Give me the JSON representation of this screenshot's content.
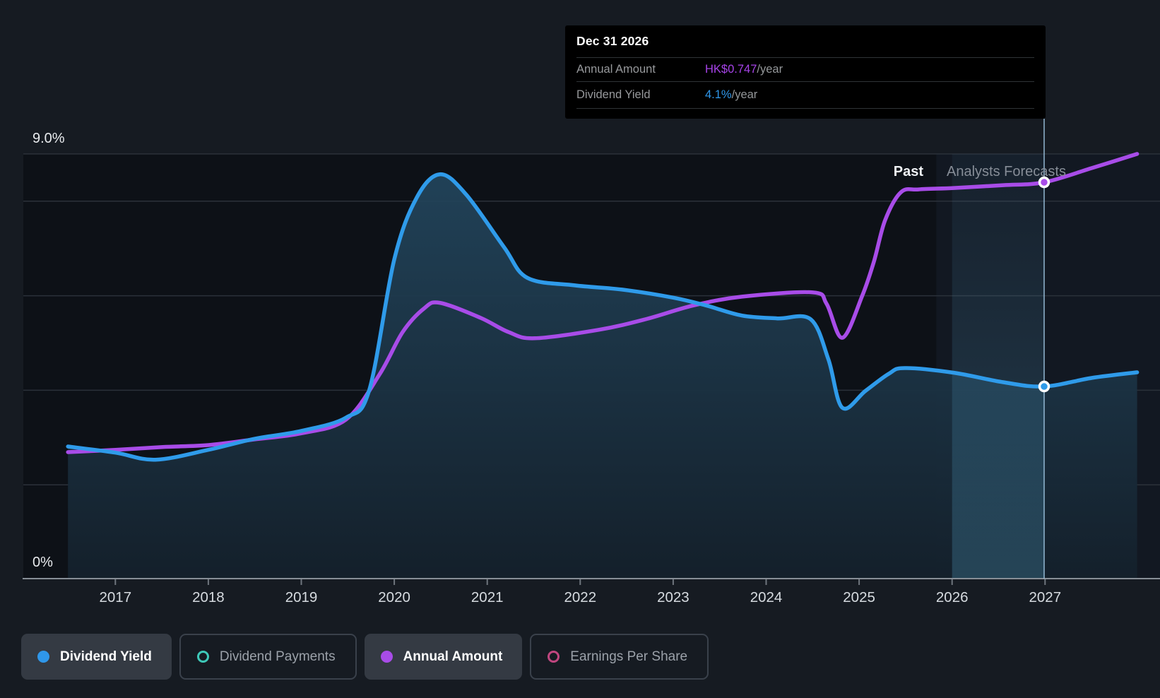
{
  "tooltip": {
    "date": "Dec 31 2026",
    "rows": [
      {
        "label": "Annual Amount",
        "value": "HK$0.747",
        "suffix": "/year",
        "value_color": "#a643e8"
      },
      {
        "label": "Dividend Yield",
        "value": "4.1%",
        "suffix": "/year",
        "value_color": "#2f97ea"
      }
    ]
  },
  "region_labels": {
    "past": "Past",
    "forecast": "Analysts Forecasts"
  },
  "axis": {
    "y_top_label": "9.0%",
    "y_bottom_label": "0%",
    "x_tick_years": [
      2017,
      2018,
      2019,
      2020,
      2021,
      2022,
      2023,
      2024,
      2025,
      2026,
      2027
    ]
  },
  "legend": [
    {
      "label": "Dividend Yield",
      "active": true,
      "color": "#2f97ea",
      "marker": "filled"
    },
    {
      "label": "Dividend Payments",
      "active": false,
      "color": "#3ec8b8",
      "marker": "ring"
    },
    {
      "label": "Annual Amount",
      "active": true,
      "color": "#a84ce8",
      "marker": "filled"
    },
    {
      "label": "Earnings Per Share",
      "active": false,
      "color": "#c0467f",
      "marker": "ring"
    }
  ],
  "colors": {
    "page_bg": "#161b22",
    "plot_bg_past": "#0d1117",
    "plot_bg_forecast": "#121822",
    "gridline": "#2b313a",
    "axis_line": "#878e96",
    "tick": "#6f767e",
    "year_label": "#d6dbe0",
    "pct_label": "#e8ebee",
    "past_label": "#f0f3f6",
    "forecast_label": "#868d97",
    "blue_line": "#2f9bea",
    "purple_line": "#a84ce8",
    "hover_line": "#9cc3df"
  },
  "chart_data": {
    "type": "area",
    "title": "Dividend Yield history and forecast",
    "x_unit": "year",
    "y_unit": "percent (left scale 0%-9.0%)",
    "xlim": [
      2016.45,
      2028.25
    ],
    "ylim": [
      0,
      9.6
    ],
    "x_ticks": [
      2017,
      2018,
      2019,
      2020,
      2021,
      2022,
      2023,
      2024,
      2025,
      2026,
      2027
    ],
    "gridlines_pct": [
      9,
      8,
      6,
      4,
      2
    ],
    "grid": true,
    "legend_position": "bottom",
    "past_until": 2025.83,
    "hover": {
      "x": 2026.99,
      "band_start": 2026.0,
      "date": "Dec 31 2026",
      "dividend_yield_pct": 4.1,
      "annual_amount": "HK$0.747"
    },
    "series": [
      {
        "name": "Annual Amount",
        "color": "#a84ce8",
        "fill": false,
        "unit": "plotted on % axis; HK$0.747/year at cursor equals 8.40 axis units",
        "points": [
          [
            2016.49,
            2.69
          ],
          [
            2017.0,
            2.74
          ],
          [
            2017.51,
            2.8
          ],
          [
            2018.0,
            2.84
          ],
          [
            2018.49,
            2.96
          ],
          [
            2019.0,
            3.09
          ],
          [
            2019.48,
            3.38
          ],
          [
            2019.84,
            4.33
          ],
          [
            2020.09,
            5.23
          ],
          [
            2020.32,
            5.73
          ],
          [
            2020.49,
            5.85
          ],
          [
            2020.93,
            5.53
          ],
          [
            2021.23,
            5.23
          ],
          [
            2021.51,
            5.1
          ],
          [
            2022.2,
            5.28
          ],
          [
            2022.7,
            5.5
          ],
          [
            2023.21,
            5.79
          ],
          [
            2023.74,
            5.98
          ],
          [
            2024.5,
            6.07
          ],
          [
            2024.65,
            5.83
          ],
          [
            2024.82,
            5.11
          ],
          [
            2025.03,
            5.98
          ],
          [
            2025.16,
            6.73
          ],
          [
            2025.28,
            7.6
          ],
          [
            2025.45,
            8.19
          ],
          [
            2025.64,
            8.25
          ],
          [
            2026.02,
            8.28
          ],
          [
            2026.55,
            8.34
          ],
          [
            2026.99,
            8.4
          ],
          [
            2027.5,
            8.7
          ],
          [
            2027.99,
            9.0
          ]
        ]
      },
      {
        "name": "Dividend Yield",
        "color": "#2f9bea",
        "fill": true,
        "unit": "percent",
        "points": [
          [
            2016.49,
            2.81
          ],
          [
            2017.0,
            2.68
          ],
          [
            2017.43,
            2.53
          ],
          [
            2018.0,
            2.74
          ],
          [
            2018.49,
            2.97
          ],
          [
            2019.0,
            3.14
          ],
          [
            2019.48,
            3.42
          ],
          [
            2019.73,
            4.0
          ],
          [
            2020.0,
            6.77
          ],
          [
            2020.24,
            8.07
          ],
          [
            2020.49,
            8.57
          ],
          [
            2020.77,
            8.15
          ],
          [
            2021.18,
            7.03
          ],
          [
            2021.43,
            6.38
          ],
          [
            2021.94,
            6.22
          ],
          [
            2022.45,
            6.13
          ],
          [
            2023.0,
            5.96
          ],
          [
            2023.36,
            5.79
          ],
          [
            2023.74,
            5.58
          ],
          [
            2024.12,
            5.52
          ],
          [
            2024.48,
            5.5
          ],
          [
            2024.67,
            4.65
          ],
          [
            2024.82,
            3.63
          ],
          [
            2025.07,
            3.99
          ],
          [
            2025.32,
            4.35
          ],
          [
            2025.49,
            4.47
          ],
          [
            2026.02,
            4.37
          ],
          [
            2026.55,
            4.17
          ],
          [
            2026.99,
            4.08
          ],
          [
            2027.5,
            4.26
          ],
          [
            2027.99,
            4.38
          ]
        ]
      }
    ]
  }
}
